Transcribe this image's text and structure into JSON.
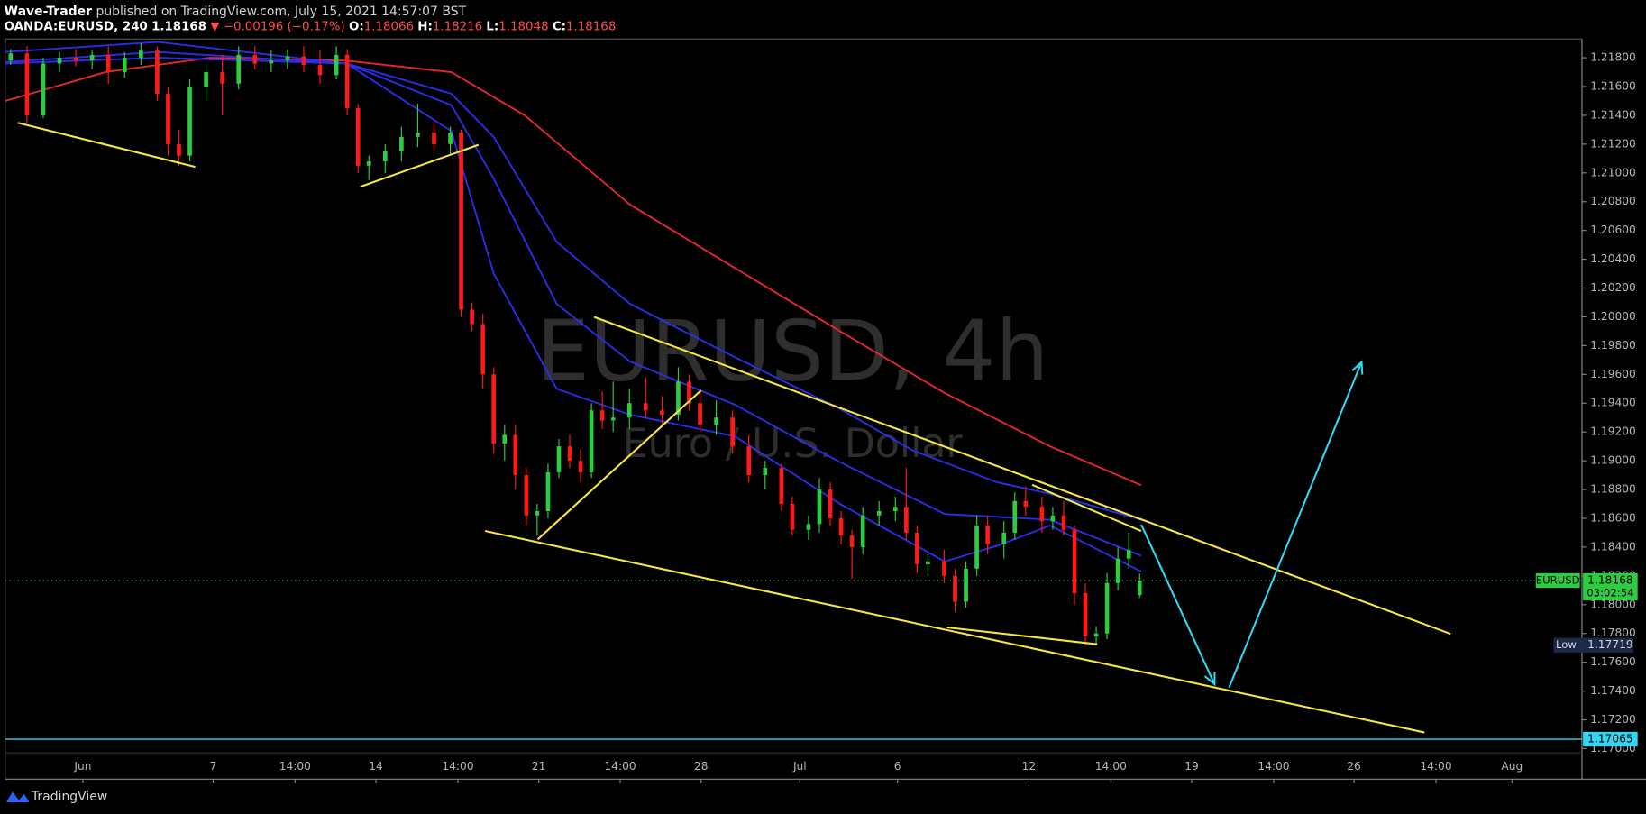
{
  "header": {
    "author": "Wave-Trader",
    "published": "published on TradingView.com, July 15, 2021 14:57:07 BST",
    "symbol": "OANDA:EURUSD, 240",
    "change": "▼ −0.00196 (−0.17%)",
    "ohlc_labels": [
      "O:",
      "H:",
      "L:",
      "C:"
    ]
  },
  "footer": {
    "brand": "TradingView"
  },
  "chart_data": {
    "type": "candlestick",
    "watermark": {
      "title": "EURUSD, 4h",
      "subtitle": "Euro / U.S. Dollar"
    },
    "up_color": "#2ecc40",
    "down_color": "#ff1a1a",
    "xlim": [
      0,
      290.5
    ],
    "xticks": [
      {
        "value": 14.3,
        "label": "Jun"
      },
      {
        "value": 38.3,
        "label": "7"
      },
      {
        "value": 53.4,
        "label": "14:00"
      },
      {
        "value": 68.3,
        "label": "14"
      },
      {
        "value": 83.4,
        "label": "14:00"
      },
      {
        "value": 98.3,
        "label": "21"
      },
      {
        "value": 113.3,
        "label": "14:00"
      },
      {
        "value": 128.2,
        "label": "28"
      },
      {
        "value": 146.4,
        "label": "Jul"
      },
      {
        "value": 164.4,
        "label": "6"
      },
      {
        "value": 188.6,
        "label": "12"
      },
      {
        "value": 203.7,
        "label": "14:00"
      },
      {
        "value": 218.6,
        "label": "19"
      },
      {
        "value": 233.7,
        "label": "14:00"
      },
      {
        "value": 248.5,
        "label": "26"
      },
      {
        "value": 263.6,
        "label": "14:00"
      },
      {
        "value": 277.6,
        "label": "Aug"
      }
    ],
    "ylim": [
      1.1697,
      1.2193
    ],
    "yticks": [
      {
        "value": 1.17,
        "label": "1.17000"
      },
      {
        "value": 1.172,
        "label": "1.17200"
      },
      {
        "value": 1.174,
        "label": "1.17400"
      },
      {
        "value": 1.176,
        "label": "1.17600"
      },
      {
        "value": 1.178,
        "label": "1.17800"
      },
      {
        "value": 1.18,
        "label": "1.18000"
      },
      {
        "value": 1.182,
        "label": "1.18200"
      },
      {
        "value": 1.184,
        "label": "1.18400"
      },
      {
        "value": 1.186,
        "label": "1.18600"
      },
      {
        "value": 1.188,
        "label": "1.18800"
      },
      {
        "value": 1.19,
        "label": "1.19000"
      },
      {
        "value": 1.192,
        "label": "1.19200"
      },
      {
        "value": 1.194,
        "label": "1.19400"
      },
      {
        "value": 1.196,
        "label": "1.19600"
      },
      {
        "value": 1.198,
        "label": "1.19800"
      },
      {
        "value": 1.2,
        "label": "1.20000"
      },
      {
        "value": 1.202,
        "label": "1.20200"
      },
      {
        "value": 1.204,
        "label": "1.20400"
      },
      {
        "value": 1.206,
        "label": "1.20600"
      },
      {
        "value": 1.208,
        "label": "1.20800"
      },
      {
        "value": 1.21,
        "label": "1.21000"
      },
      {
        "value": 1.212,
        "label": "1.21200"
      },
      {
        "value": 1.214,
        "label": "1.21400"
      },
      {
        "value": 1.216,
        "label": "1.21600"
      },
      {
        "value": 1.218,
        "label": "1.21800"
      }
    ],
    "candles": {
      "x": [
        1,
        4,
        7,
        10,
        13,
        16,
        19,
        22,
        25,
        28,
        30,
        32,
        34,
        37,
        40,
        43,
        46,
        49,
        52,
        55,
        58,
        61,
        63,
        65,
        67,
        70,
        73,
        76,
        79,
        82,
        84,
        86,
        88,
        90,
        92,
        94,
        96,
        98,
        100,
        102,
        104,
        106,
        108,
        110,
        112,
        115,
        118,
        121,
        124,
        126,
        128,
        131,
        134,
        137,
        140,
        143,
        145,
        148,
        150,
        152,
        154,
        156,
        158,
        161,
        164,
        166,
        168,
        170,
        173,
        175,
        177,
        179,
        181,
        184,
        186,
        188,
        191,
        193,
        195,
        197,
        199,
        201,
        203,
        205,
        207,
        209
      ],
      "open": [
        1.2178,
        1.2183,
        1.214,
        1.2176,
        1.218,
        1.2178,
        1.2182,
        1.217,
        1.218,
        1.2185,
        1.2155,
        1.212,
        1.2112,
        1.216,
        1.217,
        1.2162,
        1.2182,
        1.2176,
        1.2178,
        1.2181,
        1.2175,
        1.2168,
        1.2182,
        1.2145,
        1.2105,
        1.2108,
        1.2115,
        1.2125,
        1.2128,
        1.212,
        1.2128,
        1.2005,
        1.1995,
        1.196,
        1.1912,
        1.1918,
        1.189,
        1.1862,
        1.1865,
        1.1892,
        1.191,
        1.19,
        1.1892,
        1.1935,
        1.1928,
        1.193,
        1.194,
        1.1935,
        1.1932,
        1.1955,
        1.194,
        1.1925,
        1.193,
        1.191,
        1.189,
        1.1895,
        1.187,
        1.1852,
        1.1856,
        1.188,
        1.186,
        1.1848,
        1.184,
        1.1862,
        1.1865,
        1.1868,
        1.185,
        1.1828,
        1.183,
        1.182,
        1.1802,
        1.1825,
        1.1855,
        1.1842,
        1.185,
        1.1872,
        1.1868,
        1.1858,
        1.1862,
        1.1852,
        1.1808,
        1.1778,
        1.178,
        1.1815,
        1.1832,
        1.18066
      ],
      "high": [
        1.2186,
        1.2188,
        1.218,
        1.2184,
        1.2186,
        1.2185,
        1.2188,
        1.2184,
        1.219,
        1.2188,
        1.216,
        1.213,
        1.2165,
        1.2175,
        1.2182,
        1.2188,
        1.2188,
        1.2185,
        1.2186,
        1.2188,
        1.2185,
        1.2188,
        1.2186,
        1.2148,
        1.2112,
        1.212,
        1.2132,
        1.2148,
        1.2135,
        1.2132,
        1.213,
        1.201,
        1.2002,
        1.1965,
        1.1925,
        1.1925,
        1.1895,
        1.187,
        1.1898,
        1.1915,
        1.1918,
        1.1908,
        1.194,
        1.1948,
        1.1955,
        1.195,
        1.1958,
        1.1945,
        1.1965,
        1.196,
        1.1948,
        1.1942,
        1.1935,
        1.1918,
        1.19,
        1.1898,
        1.1875,
        1.1862,
        1.1888,
        1.1885,
        1.1865,
        1.1852,
        1.1868,
        1.1872,
        1.1875,
        1.1895,
        1.1855,
        1.1835,
        1.1838,
        1.1825,
        1.183,
        1.1862,
        1.1862,
        1.1858,
        1.1878,
        1.1882,
        1.1875,
        1.1868,
        1.1872,
        1.1855,
        1.1815,
        1.1785,
        1.1822,
        1.184,
        1.185,
        1.18216
      ],
      "low": [
        1.2175,
        1.2135,
        1.2138,
        1.217,
        1.2174,
        1.2172,
        1.2162,
        1.2166,
        1.2175,
        1.215,
        1.2112,
        1.2105,
        1.2108,
        1.215,
        1.214,
        1.2158,
        1.2172,
        1.217,
        1.2172,
        1.217,
        1.2162,
        1.2165,
        1.214,
        1.21,
        1.2095,
        1.21,
        1.2108,
        1.2118,
        1.2115,
        1.2112,
        1.2,
        1.199,
        1.195,
        1.1905,
        1.19,
        1.188,
        1.1855,
        1.1848,
        1.186,
        1.1888,
        1.1895,
        1.1885,
        1.1888,
        1.1922,
        1.192,
        1.1922,
        1.193,
        1.1925,
        1.1928,
        1.1935,
        1.192,
        1.1918,
        1.1905,
        1.1885,
        1.188,
        1.1865,
        1.1848,
        1.1845,
        1.185,
        1.1855,
        1.1842,
        1.1818,
        1.1835,
        1.1855,
        1.1858,
        1.1845,
        1.1822,
        1.182,
        1.1815,
        1.1795,
        1.1798,
        1.182,
        1.1835,
        1.1832,
        1.1845,
        1.1862,
        1.185,
        1.1852,
        1.1848,
        1.18,
        1.17719,
        1.1772,
        1.1776,
        1.181,
        1.1825,
        1.18048
      ],
      "close": [
        1.2183,
        1.214,
        1.2176,
        1.218,
        1.2178,
        1.2182,
        1.217,
        1.218,
        1.2185,
        1.2155,
        1.212,
        1.2112,
        1.216,
        1.217,
        1.2162,
        1.2182,
        1.2176,
        1.2178,
        1.2181,
        1.2175,
        1.2168,
        1.2182,
        1.2145,
        1.2105,
        1.2108,
        1.2115,
        1.2125,
        1.2128,
        1.212,
        1.2128,
        1.2005,
        1.1995,
        1.196,
        1.1912,
        1.1918,
        1.189,
        1.1862,
        1.1865,
        1.1892,
        1.191,
        1.19,
        1.1892,
        1.1935,
        1.1928,
        1.193,
        1.194,
        1.1935,
        1.1932,
        1.1955,
        1.194,
        1.1925,
        1.193,
        1.191,
        1.189,
        1.1895,
        1.187,
        1.1852,
        1.1856,
        1.188,
        1.186,
        1.1848,
        1.184,
        1.1862,
        1.1865,
        1.1868,
        1.185,
        1.1828,
        1.183,
        1.182,
        1.1802,
        1.1825,
        1.1855,
        1.1842,
        1.185,
        1.1872,
        1.1868,
        1.1858,
        1.1862,
        1.1852,
        1.1808,
        1.1778,
        1.178,
        1.1815,
        1.1832,
        1.1838,
        1.18168
      ]
    },
    "moving_averages": [
      {
        "color": "#e8262b",
        "x": [
          0,
          18.4,
          37.7,
          62.9,
          82.2,
          95.7,
          115.1,
          134.4,
          153.8,
          173.1,
          192.5,
          209.3
        ],
        "values": [
          1.215,
          1.217,
          1.218,
          1.2178,
          1.217,
          1.214,
          1.2078,
          1.2034,
          1.199,
          1.1947,
          1.191,
          1.1883
        ]
      },
      {
        "color": "#2a2ee8",
        "x": [
          0,
          28.1,
          62.9,
          82.2,
          90,
          101.6,
          115.1,
          134.4,
          153.8,
          167.3,
          182.8,
          192.5,
          209.3
        ],
        "values": [
          1.2184,
          1.2191,
          1.2176,
          1.2155,
          1.2125,
          1.2052,
          1.2009,
          1.1972,
          1.1936,
          1.1907,
          1.1885,
          1.1877,
          1.1859
        ]
      },
      {
        "color": "#2a2ee8",
        "x": [
          0,
          28.1,
          62.9,
          82.2,
          90,
          101.6,
          115.1,
          134.4,
          153.8,
          173.1,
          192.5,
          209.3
        ],
        "values": [
          1.2177,
          1.2184,
          1.2176,
          1.2147,
          1.2096,
          1.2009,
          1.1969,
          1.1939,
          1.1899,
          1.1863,
          1.1859,
          1.1834
        ]
      },
      {
        "color": "#2a2ee8",
        "x": [
          0,
          28.1,
          62.9,
          82.2,
          90,
          101.6,
          115.1,
          134.4,
          153.8,
          173.1,
          182.8,
          192.5,
          209.3
        ],
        "values": [
          1.2176,
          1.218,
          1.2176,
          1.2129,
          1.203,
          1.195,
          1.1932,
          1.1917,
          1.187,
          1.183,
          1.1841,
          1.1855,
          1.1823
        ]
      }
    ],
    "drawings": [
      {
        "color": "#f5e642",
        "x": [
          2.3,
          35.0
        ],
        "y": [
          1.21348,
          1.21042
        ]
      },
      {
        "color": "#f5e642",
        "x": [
          65.4,
          87.2
        ],
        "y": [
          1.20903,
          1.21195
        ]
      },
      {
        "color": "#f5e642",
        "x": [
          88.4,
          261.5
        ],
        "y": [
          1.18512,
          1.17112
        ]
      },
      {
        "color": "#f5e642",
        "x": [
          108.5,
          266.3
        ],
        "y": [
          1.19999,
          1.17797
        ]
      },
      {
        "color": "#f5e642",
        "x": [
          98.1,
          128.2
        ],
        "y": [
          1.18454,
          1.19489
        ]
      },
      {
        "color": "#f5e642",
        "x": [
          189.2,
          209.3
        ],
        "y": [
          1.18833,
          1.18512
        ]
      },
      {
        "color": "#f5e642",
        "x": [
          173.5,
          201.2
        ],
        "y": [
          1.17842,
          1.17725
        ]
      },
      {
        "color": "#33d6f0",
        "x": [
          209.3,
          222.8
        ],
        "y": [
          1.18556,
          1.17447
        ],
        "arrow": true
      },
      {
        "color": "#33d6f0",
        "x": [
          225.5,
          249.9
        ],
        "y": [
          1.17425,
          1.19686
        ],
        "arrow": true
      }
    ],
    "hline": {
      "value": 1.17065,
      "color": "#33d6f0"
    },
    "last_price_label": {
      "name": "EURUSD",
      "countdown": "03:02:54"
    },
    "low_label": {
      "name": "Low",
      "candle": 80
    }
  }
}
